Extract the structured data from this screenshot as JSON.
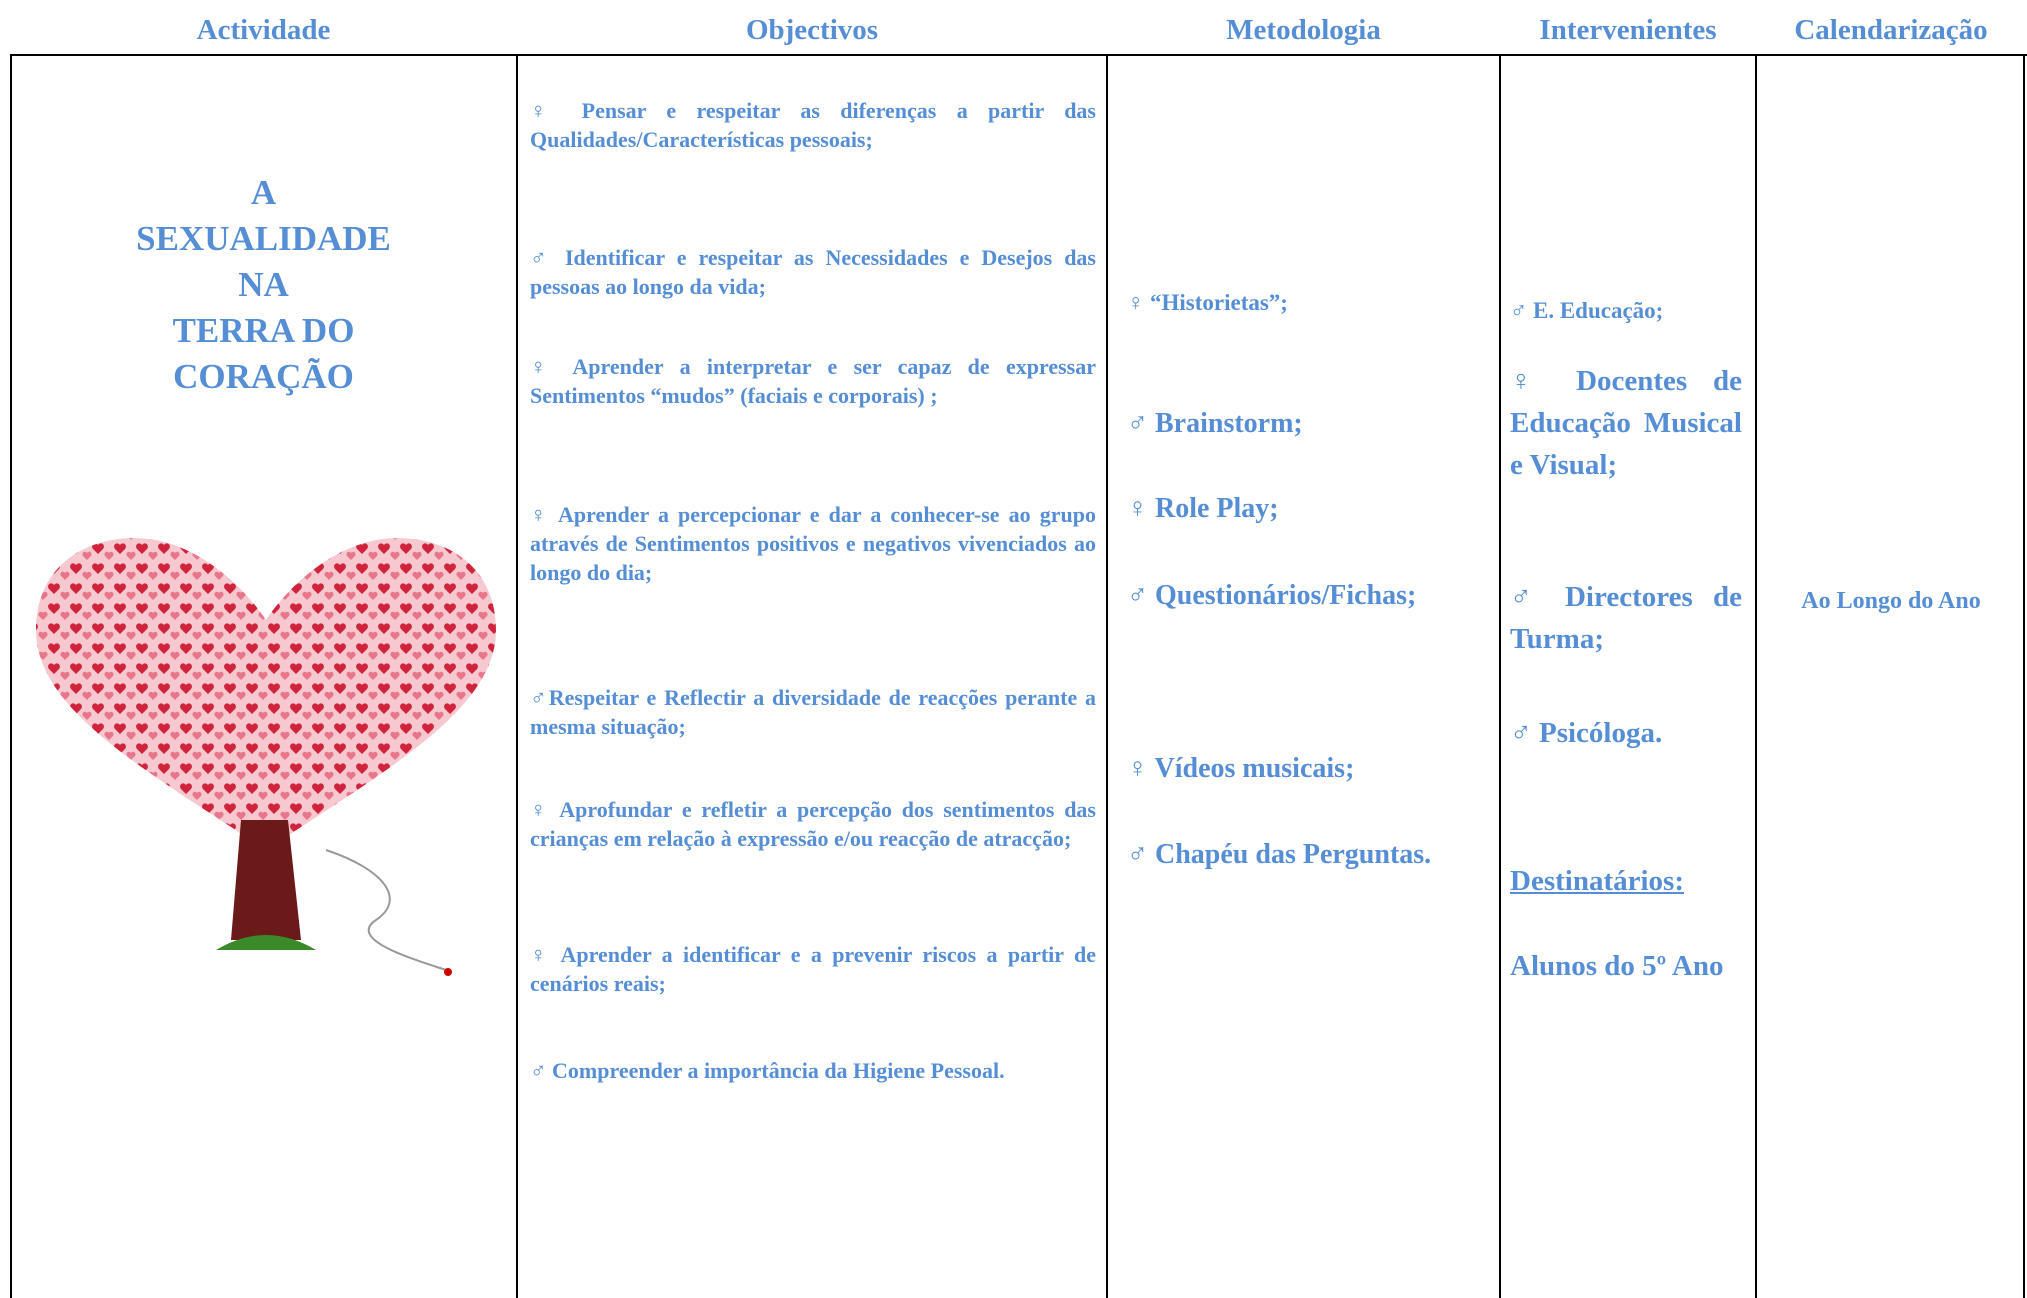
{
  "header": {
    "columns": [
      "Actividade",
      "Objectivos",
      "Metodologia",
      "Intervenientes",
      "Calendarização"
    ]
  },
  "activity": {
    "title_lines": [
      "A",
      "SEXUALIDADE",
      "NA",
      "TERRA DO",
      "CORAÇÃO"
    ]
  },
  "objectives": {
    "items": [
      "♀ Pensar e respeitar as diferenças a partir das Qualidades/Características pessoais;",
      "♂ Identificar e respeitar as Necessidades e Desejos das pessoas ao longo da vida;",
      "♀ Aprender a interpretar e ser capaz de expressar Sentimentos “mudos” (faciais e corporais) ;",
      "♀ Aprender a percepcionar e dar a conhecer-se ao grupo através de Sentimentos positivos e negativos vivenciados ao longo do dia;",
      "♂Respeitar e Reflectir a diversidade de reacções perante a mesma situação;",
      "♀ Aprofundar e refletir a percepção dos sentimentos das crianças em relação à expressão e/ou reacção de atracção;",
      "♀ Aprender a identificar e a prevenir riscos a partir de cenários reais;",
      "♂ Compreender a importância da Higiene Pessoal."
    ]
  },
  "methodology": {
    "items": [
      "♀ “Historietas”;",
      "♂ Brainstorm;",
      "♀ Role Play;",
      "♂ Questionários/Fichas;",
      "♀ Vídeos musicais;",
      "♂ Chapéu das Perguntas."
    ]
  },
  "interveners": {
    "items": [
      "♂ E. Educação;",
      "♀ Docentes de Educação Musical e Visual;",
      "♂ Directores de Turma;",
      "♂ Psicóloga."
    ],
    "recipients_label": "Destinatários:",
    "recipients": "Alunos do 5º Ano"
  },
  "calendarization": {
    "value": "Ao Longo do Ano"
  }
}
